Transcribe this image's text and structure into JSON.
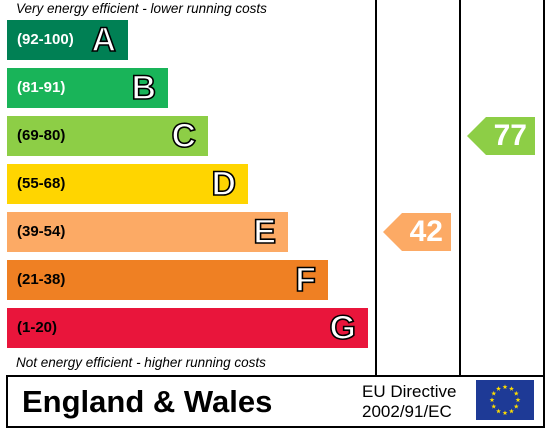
{
  "chart_data": {
    "type": "bar",
    "top_note": "Very energy efficient - lower running costs",
    "bottom_note": "Not energy efficient - higher running costs",
    "bands": [
      {
        "range": "(92-100)",
        "letter": "A",
        "color": "#008054",
        "range_color": "#ffffff"
      },
      {
        "range": "(81-91)",
        "letter": "B",
        "color": "#19b459",
        "range_color": "#ffffff"
      },
      {
        "range": "(69-80)",
        "letter": "C",
        "color": "#8dce46",
        "range_color": "#000000"
      },
      {
        "range": "(55-68)",
        "letter": "D",
        "color": "#ffd500",
        "range_color": "#000000"
      },
      {
        "range": "(39-54)",
        "letter": "E",
        "color": "#fcaa65",
        "range_color": "#000000"
      },
      {
        "range": "(21-38)",
        "letter": "F",
        "color": "#ef8023",
        "range_color": "#000000"
      },
      {
        "range": "(1-20)",
        "letter": "G",
        "color": "#e9153b",
        "range_color": "#000000"
      }
    ],
    "current": {
      "value": "42",
      "band": "E",
      "color": "#fcaa65"
    },
    "potential": {
      "value": "77",
      "band": "C",
      "color": "#8dce46"
    }
  },
  "footer": {
    "region": "England & Wales",
    "directive_line1": "EU Directive",
    "directive_line2": "2002/91/EC"
  }
}
